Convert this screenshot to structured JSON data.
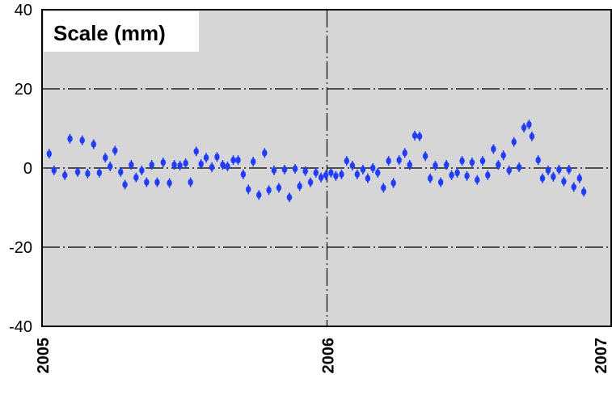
{
  "chart_data": {
    "type": "scatter",
    "title": "Scale (mm)",
    "ylim": [
      -40,
      40
    ],
    "yticks": [
      {
        "value": 40,
        "label": "40"
      },
      {
        "value": 20,
        "label": "20"
      },
      {
        "value": 0,
        "label": "0"
      },
      {
        "value": -20,
        "label": "-20"
      },
      {
        "value": -40,
        "label": "-40"
      }
    ],
    "xlim": [
      2005.0,
      2007.0
    ],
    "xticks": [
      {
        "value": 2005,
        "label": "2005"
      },
      {
        "value": 2006,
        "label": "2006"
      },
      {
        "value": 2007,
        "label": "2007"
      }
    ],
    "grid": true,
    "colors": {
      "plot_background": "#d6d6d6",
      "points": "#1f3cff",
      "grid": "#000000"
    },
    "series": [
      {
        "points": [
          {
            "x": 2005.025,
            "y": 3.6
          },
          {
            "x": 2005.042,
            "y": -0.6
          },
          {
            "x": 2005.08,
            "y": -1.8
          },
          {
            "x": 2005.098,
            "y": 7.4
          },
          {
            "x": 2005.125,
            "y": -1.0
          },
          {
            "x": 2005.141,
            "y": 7.0
          },
          {
            "x": 2005.16,
            "y": -1.4
          },
          {
            "x": 2005.181,
            "y": 6.0
          },
          {
            "x": 2005.201,
            "y": -1.2
          },
          {
            "x": 2005.222,
            "y": 2.6
          },
          {
            "x": 2005.239,
            "y": 0.4
          },
          {
            "x": 2005.256,
            "y": 4.4
          },
          {
            "x": 2005.276,
            "y": -1.0
          },
          {
            "x": 2005.291,
            "y": -4.2
          },
          {
            "x": 2005.313,
            "y": 0.8
          },
          {
            "x": 2005.33,
            "y": -2.4
          },
          {
            "x": 2005.35,
            "y": -0.6
          },
          {
            "x": 2005.367,
            "y": -3.6
          },
          {
            "x": 2005.385,
            "y": 0.8
          },
          {
            "x": 2005.404,
            "y": -3.6
          },
          {
            "x": 2005.425,
            "y": 1.4
          },
          {
            "x": 2005.447,
            "y": -3.8
          },
          {
            "x": 2005.464,
            "y": 0.8
          },
          {
            "x": 2005.484,
            "y": 0.6
          },
          {
            "x": 2005.504,
            "y": 1.2
          },
          {
            "x": 2005.521,
            "y": -3.6
          },
          {
            "x": 2005.541,
            "y": 4.2
          },
          {
            "x": 2005.558,
            "y": 1.0
          },
          {
            "x": 2005.576,
            "y": 2.6
          },
          {
            "x": 2005.596,
            "y": 0.2
          },
          {
            "x": 2005.614,
            "y": 2.8
          },
          {
            "x": 2005.634,
            "y": 0.8
          },
          {
            "x": 2005.651,
            "y": 0.4
          },
          {
            "x": 2005.671,
            "y": 2.0
          },
          {
            "x": 2005.688,
            "y": 2.0
          },
          {
            "x": 2005.706,
            "y": -1.6
          },
          {
            "x": 2005.724,
            "y": -5.4
          },
          {
            "x": 2005.741,
            "y": 1.6
          },
          {
            "x": 2005.761,
            "y": -6.8
          },
          {
            "x": 2005.781,
            "y": 3.8
          },
          {
            "x": 2005.796,
            "y": -5.6
          },
          {
            "x": 2005.814,
            "y": -0.6
          },
          {
            "x": 2005.831,
            "y": -5.0
          },
          {
            "x": 2005.851,
            "y": -0.4
          },
          {
            "x": 2005.868,
            "y": -7.4
          },
          {
            "x": 2005.888,
            "y": -0.2
          },
          {
            "x": 2005.904,
            "y": -4.6
          },
          {
            "x": 2005.924,
            "y": -0.8
          },
          {
            "x": 2005.942,
            "y": -3.6
          },
          {
            "x": 2005.961,
            "y": -1.2
          },
          {
            "x": 2005.979,
            "y": -2.4
          },
          {
            "x": 2005.996,
            "y": -1.8
          },
          {
            "x": 2006.014,
            "y": -1.2
          },
          {
            "x": 2006.031,
            "y": -2.0
          },
          {
            "x": 2006.051,
            "y": -1.6
          },
          {
            "x": 2006.069,
            "y": 1.8
          },
          {
            "x": 2006.089,
            "y": 0.6
          },
          {
            "x": 2006.106,
            "y": -1.6
          },
          {
            "x": 2006.126,
            "y": -0.4
          },
          {
            "x": 2006.143,
            "y": -2.6
          },
          {
            "x": 2006.161,
            "y": 0.0
          },
          {
            "x": 2006.178,
            "y": -1.2
          },
          {
            "x": 2006.198,
            "y": -5.0
          },
          {
            "x": 2006.216,
            "y": 1.8
          },
          {
            "x": 2006.233,
            "y": -3.8
          },
          {
            "x": 2006.253,
            "y": 2.0
          },
          {
            "x": 2006.273,
            "y": 3.8
          },
          {
            "x": 2006.29,
            "y": 0.8
          },
          {
            "x": 2006.308,
            "y": 8.2
          },
          {
            "x": 2006.325,
            "y": 8.0
          },
          {
            "x": 2006.345,
            "y": 3.0
          },
          {
            "x": 2006.362,
            "y": -2.6
          },
          {
            "x": 2006.38,
            "y": 0.6
          },
          {
            "x": 2006.399,
            "y": -3.6
          },
          {
            "x": 2006.419,
            "y": 0.8
          },
          {
            "x": 2006.437,
            "y": -1.8
          },
          {
            "x": 2006.457,
            "y": -1.2
          },
          {
            "x": 2006.474,
            "y": 1.8
          },
          {
            "x": 2006.491,
            "y": -2.0
          },
          {
            "x": 2006.509,
            "y": 1.4
          },
          {
            "x": 2006.527,
            "y": -3.0
          },
          {
            "x": 2006.546,
            "y": 1.8
          },
          {
            "x": 2006.564,
            "y": -1.8
          },
          {
            "x": 2006.584,
            "y": 4.8
          },
          {
            "x": 2006.601,
            "y": 0.8
          },
          {
            "x": 2006.619,
            "y": 3.2
          },
          {
            "x": 2006.639,
            "y": -0.6
          },
          {
            "x": 2006.656,
            "y": 6.6
          },
          {
            "x": 2006.674,
            "y": 0.2
          },
          {
            "x": 2006.691,
            "y": 10.2
          },
          {
            "x": 2006.709,
            "y": 11.0
          },
          {
            "x": 2006.719,
            "y": 8.0
          },
          {
            "x": 2006.741,
            "y": 2.0
          },
          {
            "x": 2006.756,
            "y": -2.6
          },
          {
            "x": 2006.776,
            "y": -0.6
          },
          {
            "x": 2006.794,
            "y": -2.2
          },
          {
            "x": 2006.814,
            "y": -0.4
          },
          {
            "x": 2006.831,
            "y": -3.4
          },
          {
            "x": 2006.849,
            "y": -0.4
          },
          {
            "x": 2006.866,
            "y": -4.8
          },
          {
            "x": 2006.886,
            "y": -2.6
          },
          {
            "x": 2006.901,
            "y": -6.0
          }
        ]
      }
    ]
  }
}
